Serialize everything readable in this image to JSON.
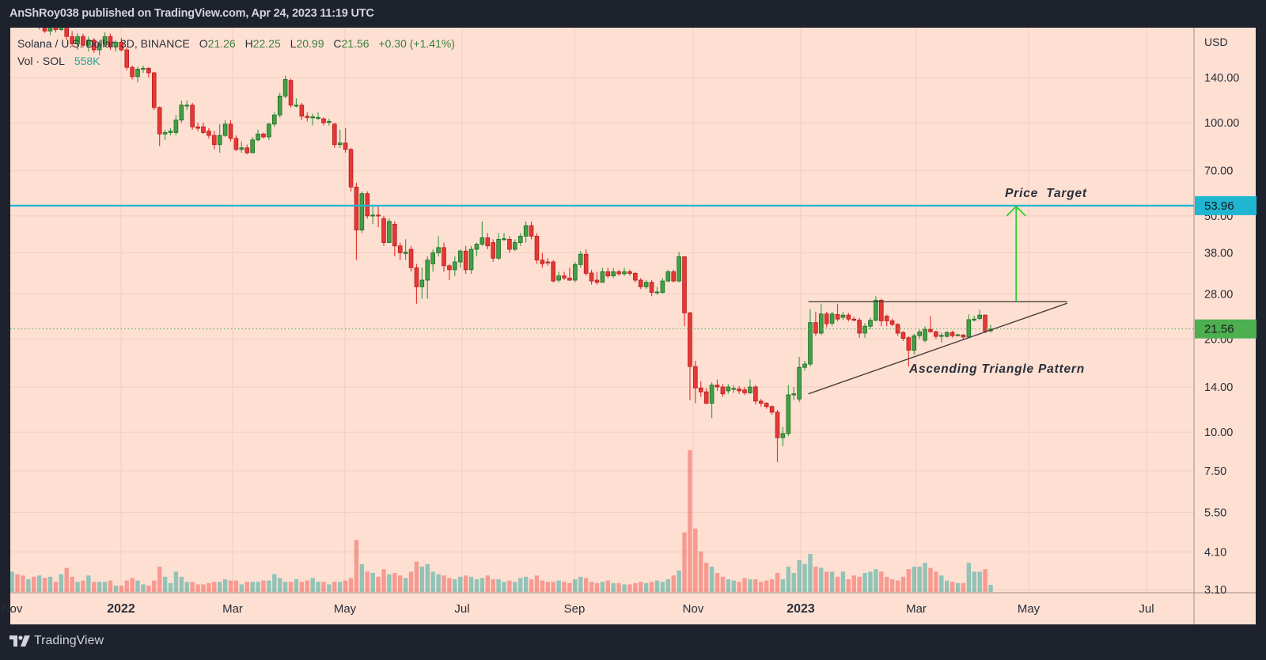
{
  "header": {
    "text": "AnShRoy038 published on TradingView.com, Apr 24, 2023 11:19 UTC"
  },
  "legend": {
    "symbol": "Solana / U.S. Dollar, 3D, BINANCE",
    "open_label": "O",
    "open": "21.26",
    "high_label": "H",
    "high": "22.25",
    "low_label": "L",
    "low": "20.99",
    "close_label": "C",
    "close": "21.56",
    "change": "+0.30 (+1.41%)",
    "vol_label": "Vol · SOL",
    "vol_value": "558K"
  },
  "footer": {
    "brand": "TradingView",
    "logo_icon": "tradingview-logo-icon"
  },
  "colors": {
    "background": "#fee0d3",
    "up": "#43a047",
    "down": "#e53935",
    "hline": "#1fb6d1",
    "price_badge": "#4caf50",
    "arrow": "#2ecc2e"
  },
  "chart_data": {
    "type": "candlestick",
    "scale": "log",
    "currency_label": "USD",
    "y_tick_labels": [
      "140.00",
      "100.00",
      "70.00",
      "50.00",
      "38.00",
      "28.00",
      "20.00",
      "14.00",
      "10.00",
      "7.50",
      "5.50",
      "4.10",
      "3.10"
    ],
    "y_ticks": [
      140,
      100,
      70,
      50,
      38,
      28,
      20,
      14,
      10,
      7.5,
      5.5,
      4.1,
      3.1
    ],
    "x_tick_labels": [
      "Nov",
      "2022",
      "Mar",
      "May",
      "Jul",
      "Sep",
      "Nov",
      "2023",
      "Mar",
      "May",
      "Jul"
    ],
    "grid": true,
    "last_price": {
      "value": 21.56,
      "label": "21.56"
    },
    "horizontal_line": {
      "value": 53.96,
      "label": "53.96"
    },
    "annotations": {
      "price_target": "Price  Target",
      "pattern": "Ascending Triangle Pattern",
      "resistance": {
        "from": [
          "2023-01-12",
          26.4
        ],
        "to": [
          "2023-06-03",
          26.4
        ]
      },
      "support": {
        "from": [
          "2023-01-12",
          13.3
        ],
        "to": [
          "2023-06-03",
          26.1
        ]
      },
      "target_arrow": {
        "date": "2023-05-06",
        "from": 26.4,
        "to": 53.96
      }
    },
    "last_candle_date": "2023-04-22",
    "candle_period_days": 3,
    "candles_ohlc": [
      [
        225,
        245,
        215,
        240
      ],
      [
        240,
        250,
        228,
        235
      ],
      [
        235,
        242,
        220,
        225
      ],
      [
        225,
        236,
        210,
        230
      ],
      [
        230,
        232,
        205,
        210
      ],
      [
        210,
        222,
        200,
        215
      ],
      [
        215,
        218,
        195,
        198
      ],
      [
        198,
        212,
        192,
        208
      ],
      [
        208,
        215,
        196,
        200
      ],
      [
        200,
        228,
        198,
        215
      ],
      [
        215,
        218,
        185,
        190
      ],
      [
        190,
        198,
        176,
        180
      ],
      [
        180,
        195,
        172,
        190
      ],
      [
        190,
        194,
        175,
        178
      ],
      [
        178,
        190,
        170,
        185
      ],
      [
        185,
        188,
        168,
        172
      ],
      [
        172,
        185,
        165,
        180
      ],
      [
        180,
        196,
        176,
        190
      ],
      [
        190,
        194,
        172,
        176
      ],
      [
        176,
        185,
        170,
        182
      ],
      [
        182,
        188,
        170,
        172
      ],
      [
        172,
        175,
        148,
        151
      ],
      [
        151,
        153,
        138,
        141
      ],
      [
        141,
        152,
        135,
        149
      ],
      [
        149,
        153,
        145,
        150
      ],
      [
        150,
        151,
        140,
        145
      ],
      [
        145,
        146,
        110,
        112
      ],
      [
        112,
        113,
        84,
        92
      ],
      [
        92,
        95,
        88,
        93
      ],
      [
        93,
        96,
        91,
        94
      ],
      [
        93,
        106,
        91,
        102
      ],
      [
        102,
        118,
        100,
        114
      ],
      [
        114,
        118,
        110,
        114
      ],
      [
        114,
        116,
        95,
        97
      ],
      [
        97,
        100,
        94,
        96
      ],
      [
        97,
        100,
        92,
        93
      ],
      [
        94,
        96,
        89,
        91
      ],
      [
        91,
        94,
        82,
        85
      ],
      [
        85,
        99,
        80,
        91
      ],
      [
        91,
        102,
        90,
        99
      ],
      [
        99,
        102,
        87,
        89
      ],
      [
        89,
        91,
        81,
        82
      ],
      [
        82,
        87,
        80,
        83
      ],
      [
        83,
        85,
        79,
        80
      ],
      [
        80,
        90,
        80,
        88
      ],
      [
        88,
        95,
        87,
        92
      ],
      [
        92,
        93,
        89,
        90
      ],
      [
        90,
        100,
        88,
        99
      ],
      [
        99,
        108,
        97,
        106
      ],
      [
        106,
        125,
        104,
        122
      ],
      [
        122,
        142,
        120,
        138
      ],
      [
        137,
        139,
        112,
        114
      ],
      [
        114,
        120,
        112,
        114
      ],
      [
        114,
        116,
        102,
        105
      ],
      [
        105,
        108,
        101,
        104
      ],
      [
        104,
        107,
        98,
        104.5
      ],
      [
        104,
        108,
        102,
        104
      ],
      [
        103,
        104,
        98,
        100
      ],
      [
        101,
        103,
        98,
        101
      ],
      [
        99,
        100,
        83,
        85
      ],
      [
        85,
        95,
        83,
        86
      ],
      [
        86,
        96,
        80,
        82
      ],
      [
        82,
        83,
        60,
        62
      ],
      [
        62,
        64,
        36,
        45
      ],
      [
        45,
        60,
        44,
        59
      ],
      [
        59,
        60,
        49,
        50
      ],
      [
        50,
        54,
        47,
        50.3
      ],
      [
        50.3,
        54,
        46,
        50
      ],
      [
        49,
        50,
        40,
        41
      ],
      [
        41,
        49,
        41,
        48
      ],
      [
        47,
        48,
        37,
        40
      ],
      [
        40,
        41,
        36,
        38
      ],
      [
        37.8,
        42,
        36,
        38.2
      ],
      [
        39,
        40,
        33,
        34
      ],
      [
        34,
        35,
        26,
        29.5
      ],
      [
        29.5,
        34,
        27,
        31
      ],
      [
        31,
        37,
        27,
        36
      ],
      [
        35,
        39,
        33,
        38
      ],
      [
        38,
        43,
        37,
        39.5
      ],
      [
        39.5,
        41,
        33,
        34.5
      ],
      [
        34.5,
        35,
        31,
        33.5
      ],
      [
        33.5,
        37,
        32,
        35.5
      ],
      [
        35.5,
        39,
        34,
        38.5
      ],
      [
        38.5,
        40,
        32.5,
        33.5
      ],
      [
        33.5,
        40,
        32.5,
        39
      ],
      [
        39,
        41,
        37,
        40.5
      ],
      [
        40.5,
        48,
        40,
        42.5
      ],
      [
        42.5,
        44,
        39,
        40
      ],
      [
        41,
        42,
        35.5,
        36.5
      ],
      [
        36.5,
        44,
        36,
        42
      ],
      [
        42,
        44,
        41.5,
        42.2
      ],
      [
        42,
        43,
        38,
        39
      ],
      [
        39,
        42,
        38.5,
        41
      ],
      [
        41,
        44,
        40,
        43
      ],
      [
        43,
        48,
        41,
        46.5
      ],
      [
        46.5,
        48,
        42,
        43
      ],
      [
        43,
        44,
        35,
        36
      ],
      [
        36,
        38,
        34,
        35
      ],
      [
        35.5,
        36.5,
        34.5,
        35.3
      ],
      [
        35.5,
        36,
        30.5,
        30.8
      ],
      [
        31,
        33,
        30.5,
        32
      ],
      [
        32,
        33,
        31,
        31.5
      ],
      [
        31.5,
        34,
        30.8,
        31
      ],
      [
        31,
        35.5,
        30.5,
        34.8
      ],
      [
        34.8,
        38.5,
        34,
        37.6
      ],
      [
        37.6,
        39,
        32,
        32.6
      ],
      [
        32.7,
        33.5,
        30,
        30.8
      ],
      [
        31,
        33,
        30,
        30.5
      ],
      [
        30.5,
        34,
        30.5,
        33
      ],
      [
        33,
        34,
        31.5,
        32
      ],
      [
        32,
        34,
        31.5,
        33
      ],
      [
        33,
        33.5,
        32,
        32.5
      ],
      [
        32.5,
        34,
        32,
        33
      ],
      [
        33,
        33.5,
        32,
        32.6
      ],
      [
        32.6,
        33,
        30.5,
        31
      ],
      [
        31,
        31.5,
        29,
        29.5
      ],
      [
        29.5,
        31,
        29,
        30.5
      ],
      [
        30.5,
        31,
        27.5,
        28.3
      ],
      [
        28.3,
        29.5,
        27.8,
        28.4
      ],
      [
        28.3,
        31.5,
        28,
        30.8
      ],
      [
        30.8,
        33.5,
        30.5,
        33
      ],
      [
        33,
        33.5,
        30.5,
        30.8
      ],
      [
        30.8,
        38.2,
        30.5,
        36.9
      ],
      [
        36.9,
        37,
        22,
        24.3
      ],
      [
        24.3,
        24.5,
        12.7,
        16.3
      ],
      [
        16.3,
        17,
        12.4,
        13.9
      ],
      [
        13.9,
        14.6,
        13,
        13.5
      ],
      [
        13.5,
        13.9,
        12.3,
        12.4
      ],
      [
        12.4,
        14.5,
        11.1,
        14.2
      ],
      [
        14.2,
        14.8,
        13.6,
        14
      ],
      [
        14,
        14.3,
        13,
        13.3
      ],
      [
        13.6,
        14.3,
        13.3,
        14
      ],
      [
        13.8,
        14.2,
        13.4,
        13.85
      ],
      [
        13.8,
        14.1,
        13.3,
        13.6
      ],
      [
        13.7,
        14,
        13.2,
        13.4
      ],
      [
        13.4,
        14.8,
        13.3,
        14
      ],
      [
        14,
        14.2,
        12.3,
        12.6
      ],
      [
        12.6,
        12.8,
        12.1,
        12.4
      ],
      [
        12.4,
        12.5,
        11.9,
        12.1
      ],
      [
        12.1,
        12.2,
        11.4,
        11.6
      ],
      [
        11.6,
        11.8,
        8,
        9.6
      ],
      [
        9.6,
        10.4,
        9,
        9.9
      ],
      [
        9.9,
        14.2,
        9.7,
        13.2
      ],
      [
        13.2,
        14,
        12.7,
        13.3
      ],
      [
        12.8,
        17.5,
        12.5,
        16.2
      ],
      [
        16.2,
        17,
        15.8,
        16.6
      ],
      [
        16.6,
        25,
        16.3,
        22.6
      ],
      [
        22.6,
        24.5,
        20.5,
        20.9
      ],
      [
        20.9,
        26,
        20.6,
        24.1
      ],
      [
        24.1,
        24.5,
        21.8,
        22.4
      ],
      [
        22.5,
        24.5,
        22,
        24.1
      ],
      [
        24,
        26,
        22.8,
        23.2
      ],
      [
        23.5,
        24.5,
        23,
        23.9
      ],
      [
        23.9,
        24.3,
        22.8,
        23.2
      ],
      [
        23.2,
        23.6,
        22.8,
        23
      ],
      [
        23,
        23.4,
        20.2,
        20.9
      ],
      [
        20.9,
        22.5,
        20.2,
        22
      ],
      [
        22,
        23.5,
        21.5,
        23
      ],
      [
        23,
        27.5,
        22.8,
        26.7
      ],
      [
        26.7,
        27,
        22,
        22.9
      ],
      [
        23.7,
        24,
        22,
        22.9
      ],
      [
        22.9,
        23.3,
        22,
        22.3
      ],
      [
        22.3,
        22.5,
        20.5,
        20.9
      ],
      [
        21,
        21.2,
        19.7,
        20.1
      ],
      [
        20.2,
        20.4,
        16.3,
        18.4
      ],
      [
        18.4,
        20.8,
        17.8,
        20.5
      ],
      [
        20.5,
        21.5,
        20,
        21.1
      ],
      [
        19.8,
        22,
        19.5,
        21.5
      ],
      [
        21.5,
        23.7,
        21,
        21.1
      ],
      [
        21.1,
        21.3,
        20,
        20.4
      ],
      [
        20.45,
        21,
        19.5,
        20.55
      ],
      [
        20.4,
        21.2,
        20.2,
        21
      ],
      [
        21,
        21.3,
        20.2,
        20.5
      ],
      [
        20.6,
        20.8,
        20.4,
        20.65
      ],
      [
        20.6,
        20.8,
        20,
        20.3
      ],
      [
        20.3,
        24,
        20.2,
        23.1
      ],
      [
        23.1,
        23.8,
        22.8,
        23.2
      ],
      [
        23.3,
        24.9,
        23,
        23.9
      ],
      [
        23.9,
        24,
        20.9,
        21.2
      ],
      [
        21.26,
        22.25,
        20.99,
        21.56
      ]
    ],
    "volume_millions": [
      1.6,
      1.4,
      1.3,
      1.0,
      1.2,
      1.3,
      1.1,
      1.2,
      0.8,
      1.4,
      1.9,
      1.2,
      0.8,
      0.9,
      1.3,
      0.8,
      0.8,
      0.8,
      0.9,
      0.5,
      0.5,
      0.9,
      1.1,
      0.9,
      0.6,
      0.5,
      0.9,
      2.0,
      1.2,
      0.7,
      1.6,
      1.2,
      0.8,
      0.8,
      0.6,
      0.6,
      0.7,
      0.8,
      0.8,
      1.0,
      0.9,
      0.9,
      0.6,
      0.8,
      0.8,
      0.8,
      0.9,
      0.9,
      1.4,
      1.1,
      0.8,
      0.8,
      1.0,
      0.8,
      0.9,
      1.1,
      0.8,
      0.8,
      0.6,
      0.8,
      0.8,
      0.9,
      1.1,
      4.1,
      2.2,
      1.6,
      1.5,
      1.2,
      1.8,
      1.4,
      1.5,
      1.3,
      1.1,
      1.6,
      2.4,
      2.0,
      2.2,
      1.6,
      1.4,
      1.3,
      1.1,
      1.0,
      1.2,
      1.3,
      1.2,
      1.0,
      1.1,
      1.3,
      1.0,
      1.0,
      0.8,
      0.9,
      0.8,
      1.1,
      1.2,
      1.0,
      1.3,
      0.9,
      0.8,
      0.8,
      0.9,
      0.8,
      0.7,
      1.0,
      1.2,
      1.1,
      0.8,
      0.7,
      0.8,
      0.9,
      0.7,
      0.7,
      0.6,
      0.6,
      0.7,
      0.8,
      0.7,
      0.8,
      0.9,
      0.8,
      1.0,
      1.3,
      1.7,
      4.7,
      11.2,
      5.0,
      3.2,
      2.3,
      2.0,
      1.5,
      1.2,
      1.0,
      0.9,
      0.8,
      1.1,
      1.0,
      1.0,
      0.8,
      0.9,
      1.0,
      1.5,
      1.0,
      2.0,
      1.5,
      2.5,
      2.2,
      3.0,
      2.0,
      1.9,
      1.6,
      1.6,
      1.2,
      1.6,
      1.0,
      1.3,
      1.2,
      1.5,
      1.6,
      1.8,
      1.6,
      1.2,
      1.0,
      0.9,
      1.2,
      1.8,
      2.0,
      2.0,
      2.3,
      1.9,
      1.6,
      1.3,
      0.9,
      0.8,
      0.7,
      0.7,
      2.3,
      1.6,
      1.6,
      1.8,
      0.558
    ]
  }
}
